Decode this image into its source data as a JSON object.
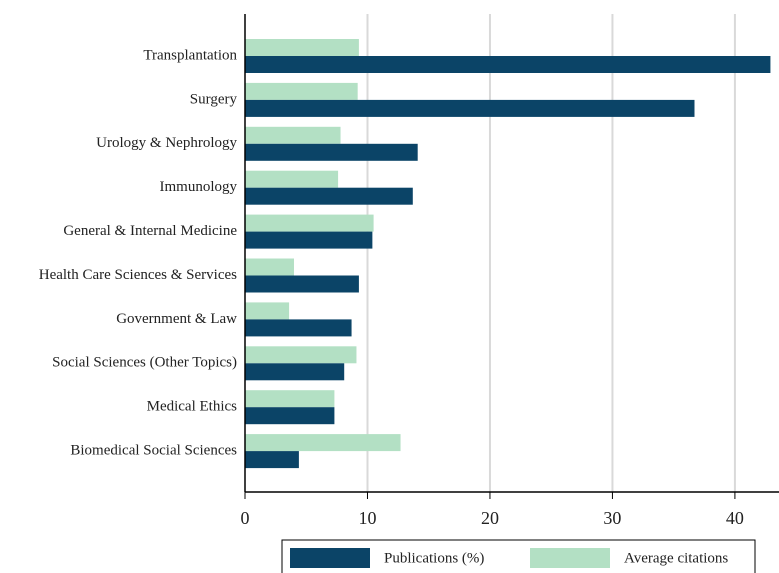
{
  "chart_data": {
    "type": "bar",
    "orientation": "horizontal",
    "categories": [
      "Transplantation",
      "Surgery",
      "Urology & Nephrology",
      "Immunology",
      "General & Internal Medicine",
      "Health Care Sciences & Services",
      "Government & Law",
      "Social Sciences (Other Topics)",
      "Medical Ethics",
      "Biomedical Social Sciences"
    ],
    "series": [
      {
        "name": "Average citations",
        "color": "#b3e0c4",
        "values": [
          9.3,
          9.2,
          7.8,
          7.6,
          10.5,
          4.0,
          3.6,
          9.1,
          7.3,
          12.7
        ]
      },
      {
        "name": "Publications (%)",
        "color": "#0b4467",
        "values": [
          42.9,
          36.7,
          14.1,
          13.7,
          10.4,
          9.3,
          8.7,
          8.1,
          7.3,
          4.4
        ]
      }
    ],
    "xlim": [
      0,
      43.6
    ],
    "xticks": [
      0,
      10,
      20,
      30,
      40
    ],
    "grid": true,
    "legend": "bottom"
  }
}
